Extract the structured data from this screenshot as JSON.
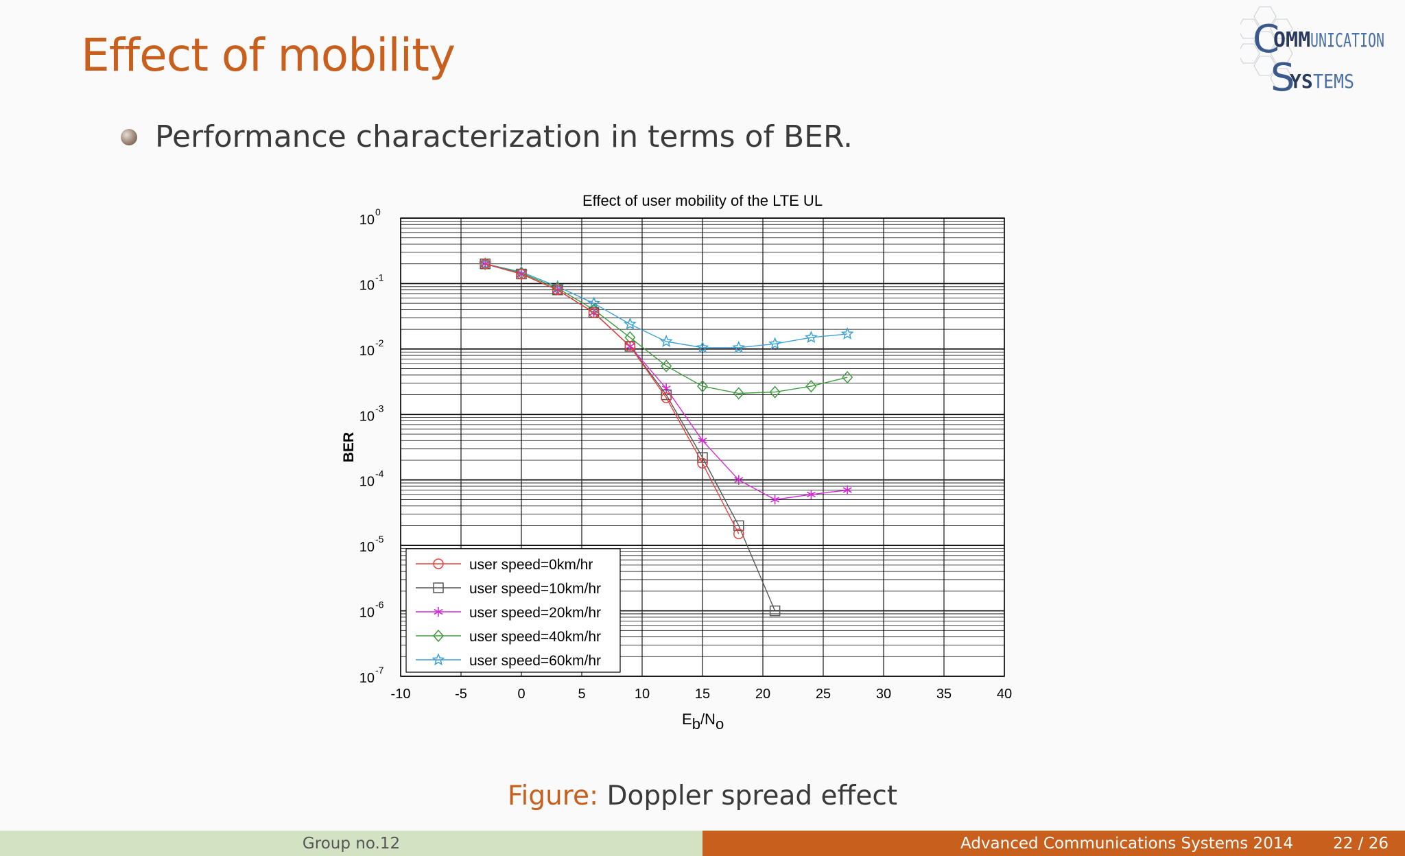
{
  "slide": {
    "title": "Effect of mobility",
    "bullet": "Performance characterization in terms of BER."
  },
  "logo": {
    "line1_big": "C",
    "line1_bold": "OMM",
    "line1_rest": "UNICATION",
    "line2_big": "S",
    "line2_bold": "YS",
    "line2_rest": "TEMS",
    "color": "#3a5a8c"
  },
  "caption": {
    "label": "Figure:",
    "text": "Doppler spread effect"
  },
  "footer": {
    "group": "Group no.12",
    "conference": "Advanced Communications Systems 2014",
    "page": "22 / 26"
  },
  "colors": {
    "accent": "#c85f1c",
    "footer_left_bg": "#d4e2c4"
  },
  "chart_data": {
    "type": "line",
    "title": "Effect of user mobility of the LTE UL",
    "xlabel_main": "E",
    "xlabel_sub1": "b",
    "xlabel_mid": "/N",
    "xlabel_sub2": "o",
    "ylabel": "BER",
    "xlim": [
      -10,
      40
    ],
    "ylim": [
      1e-07,
      1
    ],
    "yscale": "log",
    "grid": true,
    "legend_position": "bottom-left",
    "x_ticks": [
      "-10",
      "-5",
      "0",
      "5",
      "10",
      "15",
      "20",
      "25",
      "30",
      "35",
      "40"
    ],
    "y_ticks": [
      {
        "base": "10",
        "exp": "0"
      },
      {
        "base": "10",
        "exp": "-1"
      },
      {
        "base": "10",
        "exp": "-2"
      },
      {
        "base": "10",
        "exp": "-3"
      },
      {
        "base": "10",
        "exp": "-4"
      },
      {
        "base": "10",
        "exp": "-5"
      },
      {
        "base": "10",
        "exp": "-6"
      },
      {
        "base": "10",
        "exp": "-7"
      }
    ],
    "series": [
      {
        "name": "user speed=0km/hr",
        "color": "#e8413c",
        "marker": "circle",
        "x": [
          -3,
          0,
          3,
          6,
          9,
          12,
          15,
          18
        ],
        "y": [
          0.2,
          0.14,
          0.08,
          0.036,
          0.011,
          0.0018,
          0.00018,
          1.5e-05
        ]
      },
      {
        "name": "user speed=10km/hr",
        "color": "#555555",
        "marker": "square",
        "x": [
          -3,
          0,
          3,
          6,
          9,
          12,
          15,
          18,
          21
        ],
        "y": [
          0.2,
          0.14,
          0.08,
          0.036,
          0.011,
          0.002,
          0.00022,
          2e-05,
          1e-06
        ]
      },
      {
        "name": "user speed=20km/hr",
        "color": "#d62bd6",
        "marker": "star6",
        "x": [
          -3,
          0,
          3,
          6,
          9,
          12,
          15,
          18,
          21,
          24,
          27
        ],
        "y": [
          0.2,
          0.14,
          0.08,
          0.036,
          0.011,
          0.0025,
          0.0004,
          0.0001,
          5e-05,
          6e-05,
          7e-05
        ]
      },
      {
        "name": "user speed=40km/hr",
        "color": "#3d9c3d",
        "marker": "diamond",
        "x": [
          -3,
          0,
          3,
          6,
          9,
          12,
          15,
          18,
          21,
          24,
          27
        ],
        "y": [
          0.2,
          0.145,
          0.085,
          0.04,
          0.015,
          0.0055,
          0.0027,
          0.0021,
          0.0022,
          0.0027,
          0.0037
        ]
      },
      {
        "name": "user speed=60km/hr",
        "color": "#3ba1d6",
        "marker": "pentagram",
        "x": [
          -3,
          0,
          3,
          6,
          9,
          12,
          15,
          18,
          21,
          24,
          27
        ],
        "y": [
          0.2,
          0.15,
          0.09,
          0.05,
          0.024,
          0.013,
          0.0105,
          0.0105,
          0.012,
          0.015,
          0.017
        ]
      }
    ]
  }
}
